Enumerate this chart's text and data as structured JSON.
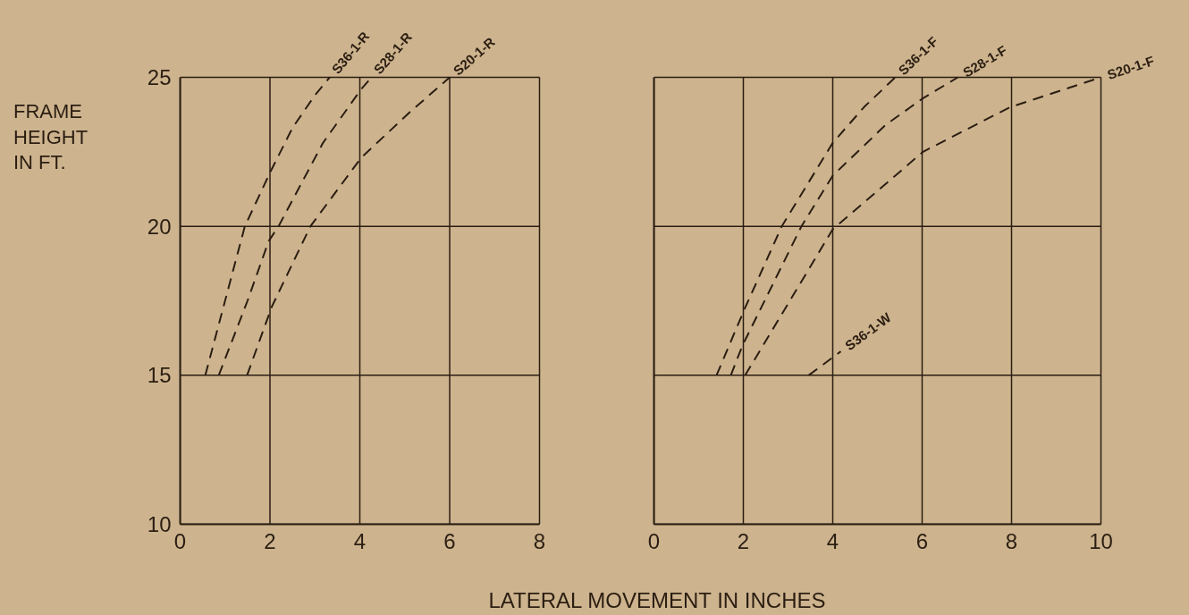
{
  "chart_data": [
    {
      "type": "line",
      "ylabel": "FRAME\nHEIGHT\nIN FT.",
      "xlabel": "LATERAL MOVEMENT IN INCHES",
      "xlim": [
        0,
        8
      ],
      "xticks": [
        0,
        2,
        4,
        6,
        8
      ],
      "ylim": [
        10,
        25
      ],
      "yticks": [
        10,
        15,
        20,
        25
      ],
      "grid": true,
      "line_style": "dashed",
      "series": [
        {
          "name": "S36-1-R",
          "color": "#2b1d12",
          "x": [
            0.56,
            1.0,
            1.44,
            2.0,
            2.5,
            3.0,
            3.33
          ],
          "values": [
            15,
            17.5,
            20,
            21.8,
            23.3,
            24.4,
            25
          ]
        },
        {
          "name": "S28-1-R",
          "color": "#2b1d12",
          "x": [
            0.86,
            1.5,
            1.97,
            2.19,
            3.18,
            4.03,
            4.26
          ],
          "values": [
            15,
            17.5,
            19.5,
            20,
            22.8,
            24.6,
            25
          ]
        },
        {
          "name": "S20-1-R",
          "color": "#2b1d12",
          "x": [
            1.49,
            2.04,
            2.9,
            4.03,
            5.09,
            6.0
          ],
          "values": [
            15,
            17.3,
            20,
            22.3,
            23.8,
            25
          ]
        }
      ]
    },
    {
      "type": "line",
      "xlim": [
        0,
        10
      ],
      "xticks": [
        0,
        2,
        4,
        6,
        8,
        10
      ],
      "ylim": [
        10,
        25
      ],
      "yticks": [
        10,
        15,
        20,
        25
      ],
      "grid": true,
      "line_style": "dashed",
      "tick_labels": "x",
      "series": [
        {
          "name": "S36-1-F",
          "color": "#2b1d12",
          "x": [
            1.4,
            2.02,
            2.86,
            4.0,
            4.7,
            5.4
          ],
          "values": [
            15,
            17.2,
            20,
            22.8,
            24.0,
            25
          ]
        },
        {
          "name": "S28-1-F",
          "color": "#2b1d12",
          "x": [
            1.72,
            1.98,
            3.3,
            4.0,
            5.18,
            6.02,
            6.8
          ],
          "values": [
            15,
            16.0,
            20,
            21.7,
            23.4,
            24.3,
            25
          ]
        },
        {
          "name": "S20-1-F",
          "color": "#2b1d12",
          "x": [
            2.04,
            4.0,
            6.02,
            7.97,
            10.0
          ],
          "values": [
            15,
            19.9,
            22.5,
            24.0,
            25
          ]
        },
        {
          "name": "S36-1-W",
          "color": "#2b1d12",
          "x": [
            3.46,
            4.18
          ],
          "values": [
            15,
            15.8
          ]
        }
      ]
    }
  ]
}
